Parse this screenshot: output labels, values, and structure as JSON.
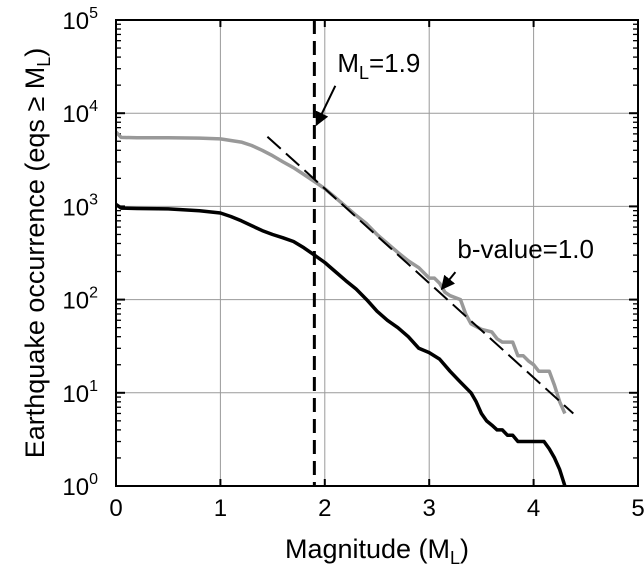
{
  "chart_data": {
    "type": "line",
    "title": "",
    "xlabel": {
      "main": "Magnitude (M",
      "sub": "L",
      "close": ")"
    },
    "ylabel": {
      "main": "Earthquake occurrence (eqs ≥ M",
      "sub": "L",
      "close": ")"
    },
    "xlim": [
      0,
      5
    ],
    "ylim": [
      1,
      100000
    ],
    "yscale": "log",
    "grid": true,
    "x_ticks": [
      0,
      1,
      2,
      3,
      4,
      5
    ],
    "x_tick_labels": [
      "0",
      "1",
      "2",
      "3",
      "4",
      "5"
    ],
    "y_ticks": [
      1,
      10,
      100,
      1000,
      10000,
      100000
    ],
    "y_tick_labels": [
      {
        "base": "10",
        "exp": "0"
      },
      {
        "base": "10",
        "exp": "1"
      },
      {
        "base": "10",
        "exp": "2"
      },
      {
        "base": "10",
        "exp": "3"
      },
      {
        "base": "10",
        "exp": "4"
      },
      {
        "base": "10",
        "exp": "5"
      }
    ],
    "series": [
      {
        "color": "#999999",
        "style": "solid",
        "points": [
          [
            0,
            6300
          ],
          [
            0.05,
            5500
          ],
          [
            0.2,
            5450
          ],
          [
            0.5,
            5450
          ],
          [
            0.8,
            5400
          ],
          [
            1.0,
            5300
          ],
          [
            1.1,
            5100
          ],
          [
            1.2,
            4900
          ],
          [
            1.3,
            4500
          ],
          [
            1.4,
            4000
          ],
          [
            1.5,
            3500
          ],
          [
            1.6,
            3000
          ],
          [
            1.7,
            2600
          ],
          [
            1.8,
            2200
          ],
          [
            1.9,
            1850
          ],
          [
            2.0,
            1550
          ],
          [
            2.1,
            1250
          ],
          [
            2.2,
            1000
          ],
          [
            2.3,
            800
          ],
          [
            2.4,
            650
          ],
          [
            2.5,
            500
          ],
          [
            2.6,
            400
          ],
          [
            2.7,
            320
          ],
          [
            2.8,
            260
          ],
          [
            2.9,
            220
          ],
          [
            3.0,
            170
          ],
          [
            3.05,
            170
          ],
          [
            3.1,
            150
          ],
          [
            3.15,
            120
          ],
          [
            3.2,
            110
          ],
          [
            3.3,
            100
          ],
          [
            3.35,
            70
          ],
          [
            3.4,
            55
          ],
          [
            3.5,
            48
          ],
          [
            3.6,
            45
          ],
          [
            3.65,
            38
          ],
          [
            3.7,
            35
          ],
          [
            3.8,
            35
          ],
          [
            3.85,
            25
          ],
          [
            3.9,
            25
          ],
          [
            3.95,
            22
          ],
          [
            4.0,
            20
          ],
          [
            4.05,
            17
          ],
          [
            4.1,
            17
          ],
          [
            4.15,
            17
          ],
          [
            4.2,
            12
          ],
          [
            4.25,
            8
          ],
          [
            4.3,
            6
          ]
        ]
      },
      {
        "color": "#000000",
        "style": "solid",
        "points": [
          [
            0,
            1050
          ],
          [
            0.05,
            960
          ],
          [
            0.2,
            950
          ],
          [
            0.5,
            940
          ],
          [
            0.8,
            900
          ],
          [
            1.0,
            850
          ],
          [
            1.1,
            780
          ],
          [
            1.2,
            700
          ],
          [
            1.3,
            620
          ],
          [
            1.4,
            550
          ],
          [
            1.5,
            500
          ],
          [
            1.6,
            460
          ],
          [
            1.7,
            420
          ],
          [
            1.8,
            360
          ],
          [
            1.9,
            300
          ],
          [
            2.0,
            250
          ],
          [
            2.1,
            200
          ],
          [
            2.2,
            160
          ],
          [
            2.3,
            130
          ],
          [
            2.4,
            100
          ],
          [
            2.5,
            75
          ],
          [
            2.6,
            60
          ],
          [
            2.7,
            50
          ],
          [
            2.8,
            40
          ],
          [
            2.9,
            30
          ],
          [
            3.0,
            27
          ],
          [
            3.1,
            23
          ],
          [
            3.2,
            17
          ],
          [
            3.3,
            13
          ],
          [
            3.4,
            10
          ],
          [
            3.45,
            8
          ],
          [
            3.5,
            6
          ],
          [
            3.55,
            5
          ],
          [
            3.6,
            4.5
          ],
          [
            3.65,
            4
          ],
          [
            3.7,
            4
          ],
          [
            3.75,
            3.5
          ],
          [
            3.8,
            3.5
          ],
          [
            3.85,
            3
          ],
          [
            4.0,
            3
          ],
          [
            4.05,
            3
          ],
          [
            4.1,
            3
          ],
          [
            4.15,
            2.5
          ],
          [
            4.2,
            2
          ],
          [
            4.25,
            1.5
          ],
          [
            4.3,
            1
          ]
        ]
      },
      {
        "color": "#000000",
        "style": "dashed",
        "points": [
          [
            1.45,
            5600
          ],
          [
            4.38,
            6
          ]
        ]
      }
    ],
    "vline": {
      "x": 1.9,
      "style": "dashed"
    },
    "annotations": [
      {
        "label_main": "M",
        "label_sub": "L",
        "label_rest": "=1.9",
        "arrow_to": [
          1.92,
          7500
        ],
        "text_at": [
          2.12,
          24000
        ]
      },
      {
        "label_main": "b-value=1.0",
        "label_sub": "",
        "label_rest": "",
        "arrow_to": [
          3.12,
          130
        ],
        "text_at": [
          3.27,
          240
        ]
      }
    ]
  }
}
